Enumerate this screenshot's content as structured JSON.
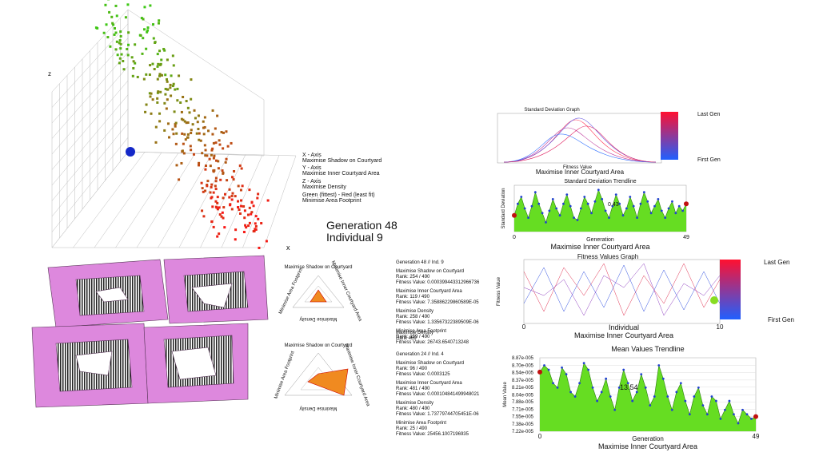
{
  "scatter": {
    "z_axis": "z",
    "x_axis": "x",
    "legend": [
      "X - Axis",
      "Maximise Shadow on Courtyard",
      "Y - Axis",
      "Maximise Inner Courtyard Area",
      "Z - Axis",
      "Maximise Density",
      "Green (fittest) - Red (least fit)",
      "Minimise Area Footprint"
    ]
  },
  "generation": {
    "line1": "Generation 48",
    "line2": "Individual 9"
  },
  "radar": [
    {
      "top": "Maximise Shadow on Courtyard",
      "right": "Maximise Inner Courtyard Area",
      "left": "Minimise Area Footprint",
      "bottom": "Maximise Density"
    },
    {
      "top": "Maximise Shadow on Courtyard",
      "right": "Maximise Inner Courtyard Area",
      "left": "Minimise Area Footprint",
      "bottom": "Maximise Density"
    }
  ],
  "info": {
    "block1": [
      "Generation 48 // Ind. 9",
      "Maximise Shadow on Courtyard",
      "Rank: 254 / 490",
      "Fitness Value: 0.000399443312966736",
      "Maximise Inner Courtyard Area",
      "Rank: 119 / 490",
      "Fitness Value: 7.35886229860589E-05",
      "Maximise Density",
      "Rank: 258 / 490",
      "Fitness Value: 1.33567322389509E-06",
      "Minimise Area Footprint",
      "Rank: 159 / 490",
      "Fitness Value: 26743.6540713248"
    ],
    "block2": [
      "Maximise Density",
      "Rank 489"
    ],
    "block3": [
      "Generation 24 // Ind. 4",
      "Maximise Shadow on Courtyard",
      "Rank: 96 / 490",
      "Fitness Value: 0.0003125",
      "Maximise Inner Courtyard Area",
      "Rank: 481 / 490",
      "Fitness Value: 0.000104841499948021",
      "Maximise Density",
      "Rank: 480 / 490",
      "Fitness Value: 1.73779744705451E-06",
      "Minimise Area Footprint",
      "Rank: 25 / 490",
      "Fitness Value: 25456.1007196935"
    ]
  },
  "std_graph": {
    "title": "Standard Deviation Graph",
    "xlabel": "Fitness Value",
    "subtitle": "Maximise Inner Courtyard Area",
    "legend_top": "Last Gen",
    "legend_bottom": "First Gen"
  },
  "fitness_graph": {
    "title": "Fitness Values Graph",
    "ylabel": "Fitness Value",
    "xlabel": "Individual",
    "subtitle": "Maximise Inner Courtyard Area",
    "xticks": [
      0,
      10
    ],
    "legend_top": "Last Gen",
    "legend_bottom": "First Gen"
  },
  "chart_data": [
    {
      "type": "area",
      "title": "Standard Deviation Trendline",
      "ylabel": "Standard Deviation",
      "xlabel": "Generation",
      "subtitle": "Maximise Inner Courtyard Area",
      "annotation": "0.43",
      "x": [
        0,
        1,
        2,
        3,
        4,
        5,
        6,
        7,
        8,
        9,
        10,
        11,
        12,
        13,
        14,
        15,
        16,
        17,
        18,
        19,
        20,
        21,
        22,
        23,
        24,
        25,
        26,
        27,
        28,
        29,
        30,
        31,
        32,
        33,
        34,
        35,
        36,
        37,
        38,
        39,
        40,
        41,
        42,
        43,
        44,
        45,
        46,
        47,
        48,
        49
      ],
      "values": [
        0.35,
        0.6,
        0.75,
        0.5,
        0.3,
        0.55,
        0.85,
        0.6,
        0.4,
        0.2,
        0.45,
        0.7,
        0.5,
        0.35,
        0.6,
        0.8,
        0.55,
        0.3,
        0.25,
        0.5,
        0.75,
        0.6,
        0.4,
        0.65,
        0.9,
        0.7,
        0.45,
        0.3,
        0.55,
        0.8,
        0.6,
        0.35,
        0.5,
        0.75,
        0.55,
        0.3,
        0.6,
        0.85,
        0.65,
        0.4,
        0.55,
        0.7,
        0.45,
        0.3,
        0.5,
        0.65,
        0.4,
        0.55,
        0.45,
        0.6
      ],
      "color": "#66dd22",
      "xlim": [
        0,
        49
      ],
      "ylim": [
        0,
        1
      ],
      "xticks": [
        0,
        49
      ]
    },
    {
      "type": "area",
      "title": "Mean Values Trendline",
      "ylabel": "Mean Value",
      "xlabel": "Generation",
      "subtitle": "Maximise Inner Courtyard Area",
      "annotation": "13.54",
      "x": [
        0,
        1,
        2,
        3,
        4,
        5,
        6,
        7,
        8,
        9,
        10,
        11,
        12,
        13,
        14,
        15,
        16,
        17,
        18,
        19,
        20,
        21,
        22,
        23,
        24,
        25,
        26,
        27,
        28,
        29,
        30,
        31,
        32,
        33,
        34,
        35,
        36,
        37,
        38,
        39,
        40,
        41,
        42,
        43,
        44,
        45,
        46,
        47,
        48,
        49
      ],
      "values": [
        8.55e-05,
        8.7e-05,
        8.6e-05,
        8.3e-05,
        8.2e-05,
        8.65e-05,
        8.5e-05,
        8.1e-05,
        8e-05,
        8.3e-05,
        8.75e-05,
        8.6e-05,
        8.2e-05,
        7.9e-05,
        8.1e-05,
        8.4e-05,
        8e-05,
        7.7e-05,
        8.2e-05,
        8.6e-05,
        8.3e-05,
        7.9e-05,
        8.1e-05,
        8.5e-05,
        8.2e-05,
        7.8e-05,
        8e-05,
        8.7e-05,
        8.4e-05,
        8e-05,
        7.7e-05,
        8.1e-05,
        8.3e-05,
        7.9e-05,
        7.6e-05,
        8e-05,
        8.2e-05,
        7.8e-05,
        7.6e-05,
        8e-05,
        7.9e-05,
        7.5e-05,
        7.7e-05,
        7.9e-05,
        7.6e-05,
        7.4e-05,
        7.7e-05,
        7.6e-05,
        7.5e-05,
        7.55e-05
      ],
      "color": "#66dd22",
      "xlim": [
        0,
        49
      ],
      "ylim": [
        7.22e-05,
        8.87e-05
      ],
      "xticks": [
        0,
        49
      ],
      "yticks": [
        {
          "value": 8.87e-05,
          "label": "8.87e-005"
        },
        {
          "value": 8.7e-05,
          "label": "8.70e-005"
        },
        {
          "value": 8.54e-05,
          "label": "8.54e-005"
        },
        {
          "value": 8.37e-05,
          "label": "8.37e-005"
        },
        {
          "value": 8.21e-05,
          "label": "8.21e-005"
        },
        {
          "value": 8.04e-05,
          "label": "8.04e-005"
        },
        {
          "value": 7.88e-05,
          "label": "7.88e-005"
        },
        {
          "value": 7.71e-05,
          "label": "7.71e-005"
        },
        {
          "value": 7.55e-05,
          "label": "7.55e-005"
        },
        {
          "value": 7.38e-05,
          "label": "7.38e-005"
        },
        {
          "value": 7.22e-05,
          "label": "7.22e-005"
        }
      ]
    }
  ]
}
